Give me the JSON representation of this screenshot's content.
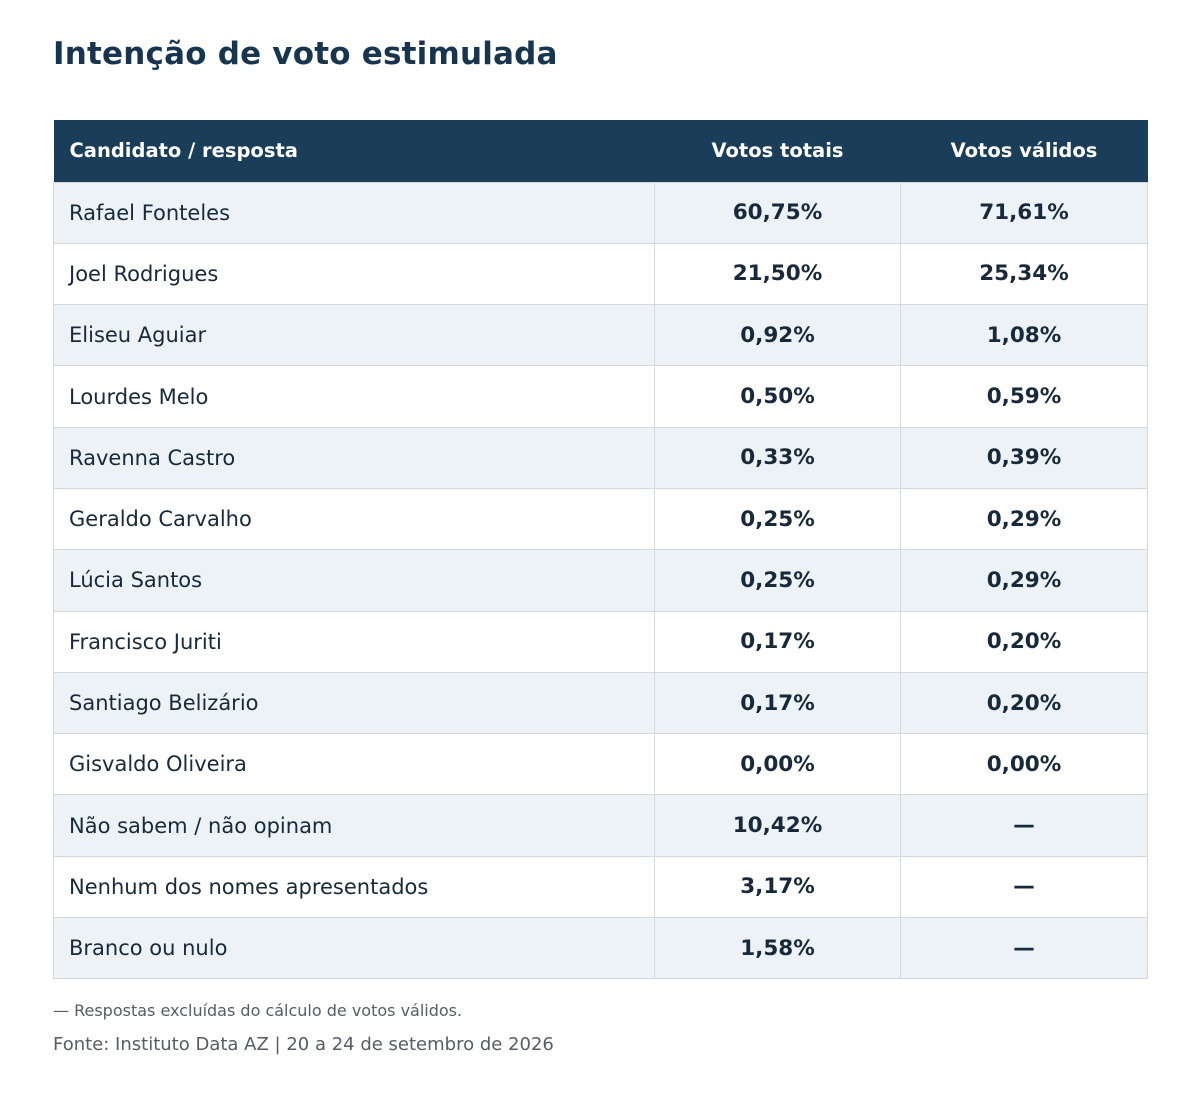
{
  "title": "Intenção de voto estimulada",
  "chart_data": {
    "type": "table",
    "title": "Intenção de voto estimulada",
    "columns": [
      "Candidato / resposta",
      "Votos totais",
      "Votos válidos"
    ],
    "rows": [
      {
        "name": "Rafael Fonteles",
        "total": "60,75%",
        "valid": "71,61%"
      },
      {
        "name": "Joel Rodrigues",
        "total": "21,50%",
        "valid": "25,34%"
      },
      {
        "name": "Eliseu Aguiar",
        "total": "0,92%",
        "valid": "1,08%"
      },
      {
        "name": "Lourdes Melo",
        "total": "0,50%",
        "valid": "0,59%"
      },
      {
        "name": "Ravenna Castro",
        "total": "0,33%",
        "valid": "0,39%"
      },
      {
        "name": "Geraldo Carvalho",
        "total": "0,25%",
        "valid": "0,29%"
      },
      {
        "name": "Lúcia Santos",
        "total": "0,25%",
        "valid": "0,29%"
      },
      {
        "name": "Francisco Juriti",
        "total": "0,17%",
        "valid": "0,20%"
      },
      {
        "name": "Santiago Belizário",
        "total": "0,17%",
        "valid": "0,20%"
      },
      {
        "name": "Gisvaldo Oliveira",
        "total": "0,00%",
        "valid": "0,00%"
      },
      {
        "name": "Não sabem / não opinam",
        "total": "10,42%",
        "valid": "—"
      },
      {
        "name": "Nenhum dos nomes apresentados",
        "total": "3,17%",
        "valid": "—"
      },
      {
        "name": "Branco ou nulo",
        "total": "1,58%",
        "valid": "—"
      }
    ]
  },
  "footnote": "— Respostas excluídas do cálculo de votos válidos.",
  "source": "Fonte: Instituto Data AZ | 20 a 24 de setembro de 2026",
  "colors": {
    "header_bg": "#1a3d59",
    "title": "#17354f",
    "row_alt": "#edf2f7",
    "border": "#d5d9dd",
    "muted_text": "#555d66"
  }
}
